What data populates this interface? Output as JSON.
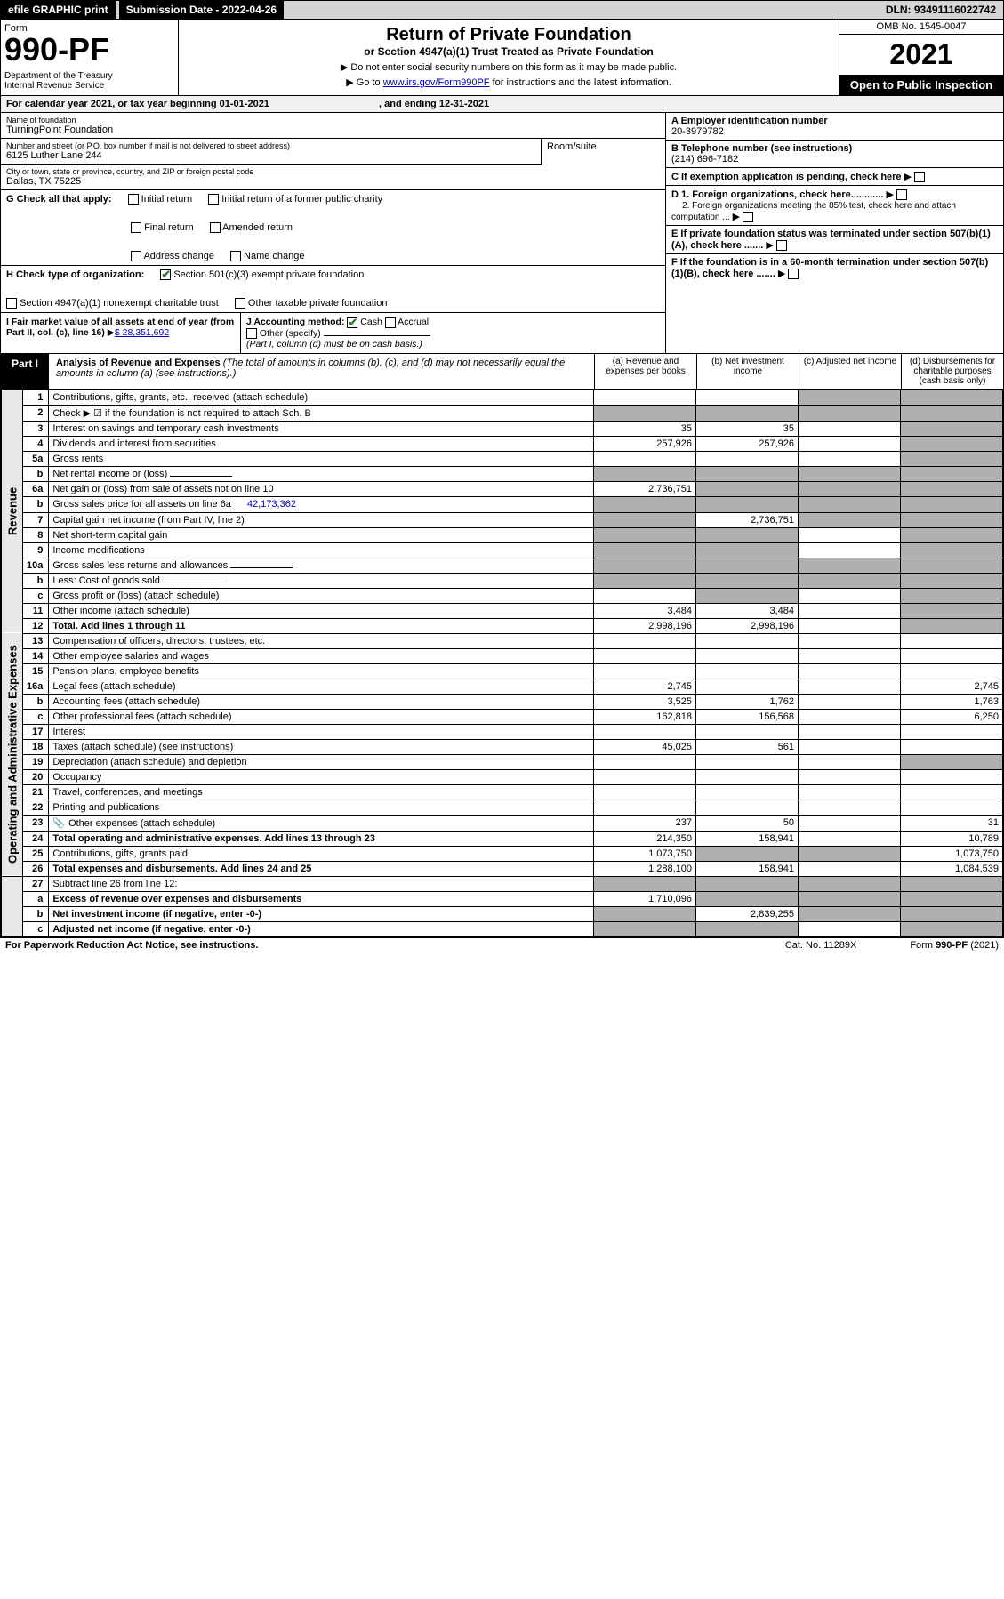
{
  "topbar": {
    "efile": "efile GRAPHIC print",
    "subdate_label": "Submission Date - 2022-04-26",
    "dln": "DLN: 93491116022742"
  },
  "header": {
    "form": "Form",
    "formnum": "990-PF",
    "dept": "Department of the Treasury\nInternal Revenue Service",
    "title": "Return of Private Foundation",
    "subtitle": "or Section 4947(a)(1) Trust Treated as Private Foundation",
    "note1": "▶ Do not enter social security numbers on this form as it may be made public.",
    "note2_pre": "▶ Go to ",
    "note2_link": "www.irs.gov/Form990PF",
    "note2_post": " for instructions and the latest information.",
    "omb": "OMB No. 1545-0047",
    "year": "2021",
    "otp": "Open to Public Inspection"
  },
  "calyear": {
    "pre": "For calendar year 2021, or tax year beginning ",
    "begin": "01-01-2021",
    "mid": " , and ending ",
    "end": "12-31-2021"
  },
  "info": {
    "name_label": "Name of foundation",
    "name_value": "TurningPoint Foundation",
    "addr_label": "Number and street (or P.O. box number if mail is not delivered to street address)",
    "addr_value": "6125 Luther Lane 244",
    "room_label": "Room/suite",
    "city_label": "City or town, state or province, country, and ZIP or foreign postal code",
    "city_value": "Dallas, TX  75225",
    "a_label": "A Employer identification number",
    "a_value": "20-3979782",
    "b_label": "B Telephone number (see instructions)",
    "b_value": "(214) 696-7182",
    "c_label": "C If exemption application is pending, check here",
    "d1_label": "D 1. Foreign organizations, check here............",
    "d2_label": "2. Foreign organizations meeting the 85% test, check here and attach computation ...",
    "e_label": "E  If private foundation status was terminated under section 507(b)(1)(A), check here .......",
    "f_label": "F  If the foundation is in a 60-month termination under section 507(b)(1)(B), check here ......."
  },
  "g": {
    "label": "G Check all that apply:",
    "opts": [
      "Initial return",
      "Final return",
      "Address change",
      "Initial return of a former public charity",
      "Amended return",
      "Name change"
    ]
  },
  "h": {
    "label": "H Check type of organization:",
    "opt1": "Section 501(c)(3) exempt private foundation",
    "opt2": "Section 4947(a)(1) nonexempt charitable trust",
    "opt3": "Other taxable private foundation"
  },
  "i": {
    "label": "I Fair market value of all assets at end of year (from Part II, col. (c), line 16)",
    "value": "$  28,351,692"
  },
  "j": {
    "label": "J Accounting method:",
    "cash": "Cash",
    "accrual": "Accrual",
    "other": "Other (specify)",
    "note": "(Part I, column (d) must be on cash basis.)"
  },
  "part1": {
    "label": "Part I",
    "title": "Analysis of Revenue and Expenses",
    "title_note": " (The total of amounts in columns (b), (c), and (d) may not necessarily equal the amounts in column (a) (see instructions).)",
    "col_a": "(a) Revenue and expenses per books",
    "col_b": "(b) Net investment income",
    "col_c": "(c) Adjusted net income",
    "col_d": "(d) Disbursements for charitable purposes (cash basis only)"
  },
  "sections": {
    "revenue": "Revenue",
    "opex": "Operating and Administrative Expenses"
  },
  "rows": [
    {
      "n": "1",
      "desc": "Contributions, gifts, grants, etc., received (attach schedule)",
      "a": "",
      "b": "",
      "c": "shade",
      "d": "shade"
    },
    {
      "n": "2",
      "desc": "Check ▶ ☑ if the foundation is not required to attach Sch. B",
      "a": "shade",
      "b": "shade",
      "c": "shade",
      "d": "shade",
      "checked": true
    },
    {
      "n": "3",
      "desc": "Interest on savings and temporary cash investments",
      "a": "35",
      "b": "35",
      "c": "",
      "d": "shade"
    },
    {
      "n": "4",
      "desc": "Dividends and interest from securities",
      "a": "257,926",
      "b": "257,926",
      "c": "",
      "d": "shade"
    },
    {
      "n": "5a",
      "desc": "Gross rents",
      "a": "",
      "b": "",
      "c": "",
      "d": "shade"
    },
    {
      "n": "b",
      "desc": "Net rental income or (loss)",
      "a": "shade",
      "b": "shade",
      "c": "shade",
      "d": "shade",
      "inline": ""
    },
    {
      "n": "6a",
      "desc": "Net gain or (loss) from sale of assets not on line 10",
      "a": "2,736,751",
      "b": "shade",
      "c": "shade",
      "d": "shade"
    },
    {
      "n": "b",
      "desc": "Gross sales price for all assets on line 6a",
      "a": "shade",
      "b": "shade",
      "c": "shade",
      "d": "shade",
      "inline": "42,173,362"
    },
    {
      "n": "7",
      "desc": "Capital gain net income (from Part IV, line 2)",
      "a": "shade",
      "b": "2,736,751",
      "c": "shade",
      "d": "shade"
    },
    {
      "n": "8",
      "desc": "Net short-term capital gain",
      "a": "shade",
      "b": "shade",
      "c": "",
      "d": "shade"
    },
    {
      "n": "9",
      "desc": "Income modifications",
      "a": "shade",
      "b": "shade",
      "c": "",
      "d": "shade"
    },
    {
      "n": "10a",
      "desc": "Gross sales less returns and allowances",
      "a": "shade",
      "b": "shade",
      "c": "shade",
      "d": "shade",
      "inline": ""
    },
    {
      "n": "b",
      "desc": "Less: Cost of goods sold",
      "a": "shade",
      "b": "shade",
      "c": "shade",
      "d": "shade",
      "inline": ""
    },
    {
      "n": "c",
      "desc": "Gross profit or (loss) (attach schedule)",
      "a": "",
      "b": "shade",
      "c": "",
      "d": "shade"
    },
    {
      "n": "11",
      "desc": "Other income (attach schedule)",
      "a": "3,484",
      "b": "3,484",
      "c": "",
      "d": "shade"
    },
    {
      "n": "12",
      "desc": "Total. Add lines 1 through 11",
      "a": "2,998,196",
      "b": "2,998,196",
      "c": "",
      "d": "shade",
      "bold": true
    }
  ],
  "oprows": [
    {
      "n": "13",
      "desc": "Compensation of officers, directors, trustees, etc.",
      "a": "",
      "b": "",
      "c": "",
      "d": ""
    },
    {
      "n": "14",
      "desc": "Other employee salaries and wages",
      "a": "",
      "b": "",
      "c": "",
      "d": ""
    },
    {
      "n": "15",
      "desc": "Pension plans, employee benefits",
      "a": "",
      "b": "",
      "c": "",
      "d": ""
    },
    {
      "n": "16a",
      "desc": "Legal fees (attach schedule)",
      "a": "2,745",
      "b": "",
      "c": "",
      "d": "2,745"
    },
    {
      "n": "b",
      "desc": "Accounting fees (attach schedule)",
      "a": "3,525",
      "b": "1,762",
      "c": "",
      "d": "1,763"
    },
    {
      "n": "c",
      "desc": "Other professional fees (attach schedule)",
      "a": "162,818",
      "b": "156,568",
      "c": "",
      "d": "6,250"
    },
    {
      "n": "17",
      "desc": "Interest",
      "a": "",
      "b": "",
      "c": "",
      "d": ""
    },
    {
      "n": "18",
      "desc": "Taxes (attach schedule) (see instructions)",
      "a": "45,025",
      "b": "561",
      "c": "",
      "d": ""
    },
    {
      "n": "19",
      "desc": "Depreciation (attach schedule) and depletion",
      "a": "",
      "b": "",
      "c": "",
      "d": "shade"
    },
    {
      "n": "20",
      "desc": "Occupancy",
      "a": "",
      "b": "",
      "c": "",
      "d": ""
    },
    {
      "n": "21",
      "desc": "Travel, conferences, and meetings",
      "a": "",
      "b": "",
      "c": "",
      "d": ""
    },
    {
      "n": "22",
      "desc": "Printing and publications",
      "a": "",
      "b": "",
      "c": "",
      "d": ""
    },
    {
      "n": "23",
      "desc": "Other expenses (attach schedule)",
      "a": "237",
      "b": "50",
      "c": "",
      "d": "31",
      "icon": true
    },
    {
      "n": "24",
      "desc": "Total operating and administrative expenses. Add lines 13 through 23",
      "a": "214,350",
      "b": "158,941",
      "c": "",
      "d": "10,789",
      "bold": true
    },
    {
      "n": "25",
      "desc": "Contributions, gifts, grants paid",
      "a": "1,073,750",
      "b": "shade",
      "c": "shade",
      "d": "1,073,750"
    },
    {
      "n": "26",
      "desc": "Total expenses and disbursements. Add lines 24 and 25",
      "a": "1,288,100",
      "b": "158,941",
      "c": "",
      "d": "1,084,539",
      "bold": true
    }
  ],
  "botrows": [
    {
      "n": "27",
      "desc": "Subtract line 26 from line 12:",
      "a": "shade",
      "b": "shade",
      "c": "shade",
      "d": "shade"
    },
    {
      "n": "a",
      "desc": "Excess of revenue over expenses and disbursements",
      "a": "1,710,096",
      "b": "shade",
      "c": "shade",
      "d": "shade",
      "bold": true
    },
    {
      "n": "b",
      "desc": "Net investment income (if negative, enter -0-)",
      "a": "shade",
      "b": "2,839,255",
      "c": "shade",
      "d": "shade",
      "bold": true
    },
    {
      "n": "c",
      "desc": "Adjusted net income (if negative, enter -0-)",
      "a": "shade",
      "b": "shade",
      "c": "",
      "d": "shade",
      "bold": true
    }
  ],
  "footer": {
    "left": "For Paperwork Reduction Act Notice, see instructions.",
    "mid": "Cat. No. 11289X",
    "right": "Form 990-PF (2021)"
  }
}
